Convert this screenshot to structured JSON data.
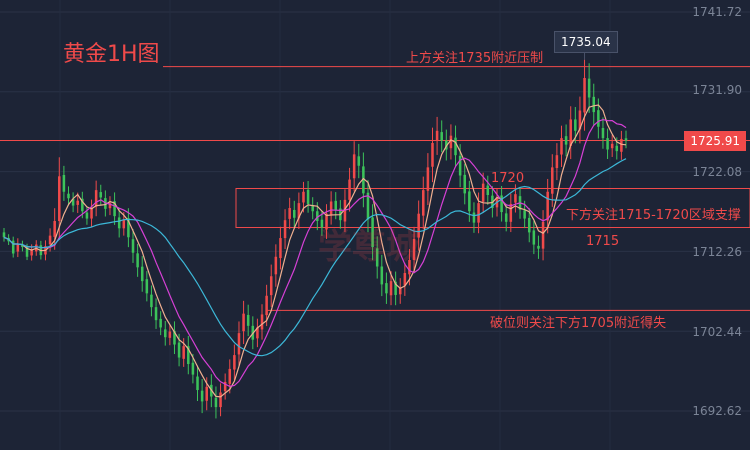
{
  "chart_data": {
    "type": "candlestick",
    "title": "黄金1H图",
    "y_axis": {
      "ticks": [
        "1741.72",
        "1731.90",
        "1722.08",
        "1712.26",
        "1702.44",
        "1692.62"
      ],
      "tick_values": [
        1741.72,
        1731.9,
        1722.08,
        1712.26,
        1702.44,
        1692.62
      ],
      "range": [
        1691.0,
        1743.0
      ]
    },
    "last_price": "1725.91",
    "high_label": "1735.04",
    "levels": [
      {
        "value": 1735.0,
        "label": "上方关注1735附近压制",
        "color": "#f04a4a"
      },
      {
        "value": 1725.9,
        "label": "",
        "color": "#f04a4a"
      },
      {
        "value": 1720.0,
        "label": "1720",
        "color": "#f04a4a"
      },
      {
        "value": 1715.0,
        "label": "1715",
        "color": "#f04a4a"
      },
      {
        "value": 1705.0,
        "label": "破位则关注下方1705附近得失",
        "color": "#f04a4a"
      }
    ],
    "zone_label": "下方关注1715-1720区域支撑",
    "watermark": "学尊城",
    "colors": {
      "up": "#f04a4a",
      "down": "#3cc35a",
      "ma_fast": "#f0b090",
      "ma_mid": "#d640d6",
      "ma_slow": "#3cb8d8",
      "bg": "#1d2436"
    },
    "candles_close": [
      1714.0,
      1713.5,
      1712.0,
      1713.2,
      1712.8,
      1711.6,
      1712.5,
      1713.1,
      1711.8,
      1712.9,
      1714.2,
      1716.0,
      1721.5,
      1719.6,
      1718.8,
      1717.9,
      1718.5,
      1717.2,
      1716.3,
      1717.6,
      1719.8,
      1718.9,
      1717.5,
      1718.2,
      1716.6,
      1715.1,
      1716.2,
      1714.0,
      1712.1,
      1710.3,
      1708.6,
      1707.1,
      1705.4,
      1703.8,
      1702.9,
      1701.7,
      1702.4,
      1700.8,
      1699.2,
      1700.6,
      1698.4,
      1697.1,
      1695.2,
      1693.8,
      1695.6,
      1694.4,
      1693.1,
      1694.9,
      1696.2,
      1697.8,
      1699.5,
      1702.2,
      1704.6,
      1703.1,
      1701.4,
      1702.9,
      1704.5,
      1706.8,
      1709.2,
      1711.6,
      1713.9,
      1716.1,
      1717.6,
      1716.4,
      1718.2,
      1719.6,
      1718.1,
      1717.2,
      1716.0,
      1715.2,
      1716.9,
      1718.4,
      1717.3,
      1716.1,
      1718.6,
      1721.1,
      1724.2,
      1722.8,
      1719.4,
      1716.2,
      1712.8,
      1710.4,
      1708.2,
      1707.1,
      1708.6,
      1706.9,
      1707.8,
      1709.6,
      1711.2,
      1713.8,
      1716.9,
      1719.8,
      1722.6,
      1725.6,
      1727.1,
      1725.9,
      1724.8,
      1726.5,
      1724.1,
      1721.6,
      1719.4,
      1717.2,
      1715.8,
      1718.2,
      1720.6,
      1719.2,
      1717.6,
      1718.9,
      1717.1,
      1715.9,
      1718.1,
      1719.3,
      1717.4,
      1716.3,
      1714.6,
      1713.1,
      1712.6,
      1715.9,
      1719.6,
      1722.6,
      1724.1,
      1726.2,
      1725.4,
      1728.5,
      1727.1,
      1729.6,
      1733.6,
      1731.2,
      1729.4,
      1727.6,
      1726.2,
      1724.8,
      1725.5,
      1724.6,
      1726.1,
      1725.9
    ],
    "volatility": [
      1.2,
      1.0,
      1.1,
      1.5,
      1.2,
      0.9,
      1.4,
      1.2,
      1.2,
      1.6,
      2.0,
      3.5,
      5.2,
      2.5,
      2.0,
      1.8,
      2.2,
      1.9,
      1.7,
      2.3,
      2.6,
      2.0,
      2.1,
      1.9,
      2.4,
      2.5,
      2.0,
      2.7,
      2.8,
      2.6,
      2.9,
      2.2,
      2.5,
      2.4,
      2.1,
      2.3,
      2.0,
      2.6,
      2.4,
      2.2,
      2.8,
      2.4,
      3.0,
      3.2,
      2.6,
      2.9,
      3.1,
      2.5,
      2.3,
      2.6,
      2.9,
      3.2,
      3.5,
      2.8,
      2.6,
      2.4,
      2.8,
      3.0,
      3.2,
      3.4,
      3.1,
      3.0,
      2.8,
      2.5,
      2.9,
      2.7,
      2.4,
      2.2,
      2.5,
      2.3,
      2.6,
      2.8,
      2.4,
      2.3,
      2.9,
      3.2,
      3.6,
      3.4,
      3.8,
      3.5,
      3.6,
      3.3,
      3.2,
      2.9,
      2.7,
      2.8,
      2.6,
      2.8,
      3.0,
      3.3,
      3.6,
      3.7,
      3.9,
      4.2,
      3.8,
      3.2,
      3.0,
      3.1,
      3.3,
      3.2,
      3.0,
      2.9,
      2.8,
      2.9,
      3.0,
      2.7,
      2.6,
      2.5,
      2.6,
      2.6,
      2.8,
      2.7,
      2.5,
      2.6,
      2.7,
      2.6,
      2.8,
      3.2,
      3.5,
      3.6,
      3.3,
      3.4,
      3.2,
      3.6,
      3.4,
      3.8,
      5.0,
      4.2,
      3.6,
      3.2,
      2.9,
      2.6,
      2.4,
      2.3,
      2.2,
      2.1
    ]
  }
}
